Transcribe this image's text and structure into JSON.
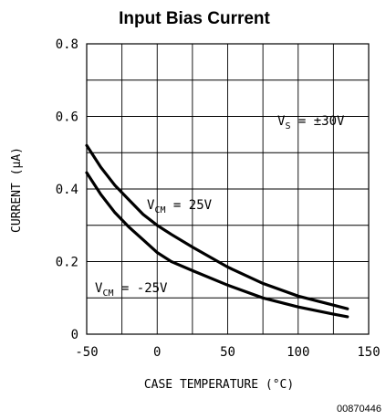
{
  "chart_data": {
    "type": "line",
    "title": "Input Bias Current",
    "xlabel": "CASE TEMPERATURE (°C)",
    "ylabel": "CURRENT (μA)",
    "xlim": [
      -50,
      150
    ],
    "ylim": [
      0,
      0.8
    ],
    "x_ticks": [
      "-50",
      "0",
      "50",
      "100",
      "150"
    ],
    "y_ticks": [
      "0",
      "0.2",
      "0.4",
      "0.6",
      "0.8"
    ],
    "grid": true,
    "series": [
      {
        "name": "V_CM = 25V",
        "label_main": "V",
        "label_sub": "CM",
        "label_rest": " = 25V",
        "x": [
          -50,
          -40,
          -30,
          -20,
          -10,
          0,
          10,
          25,
          50,
          75,
          100,
          125,
          135
        ],
        "y": [
          0.52,
          0.46,
          0.41,
          0.37,
          0.33,
          0.3,
          0.275,
          0.24,
          0.185,
          0.14,
          0.105,
          0.08,
          0.07
        ]
      },
      {
        "name": "V_CM = -25V",
        "label_main": "V",
        "label_sub": "CM",
        "label_rest": " = -25V",
        "x": [
          -50,
          -40,
          -30,
          -20,
          -10,
          0,
          10,
          25,
          50,
          75,
          100,
          125,
          135
        ],
        "y": [
          0.445,
          0.385,
          0.335,
          0.295,
          0.26,
          0.225,
          0.2,
          0.175,
          0.135,
          0.1,
          0.075,
          0.055,
          0.048
        ]
      }
    ],
    "annotations": {
      "supply_main": "V",
      "supply_sub": "S",
      "supply_rest": " = ±30V"
    },
    "figure_id": "00870446"
  }
}
